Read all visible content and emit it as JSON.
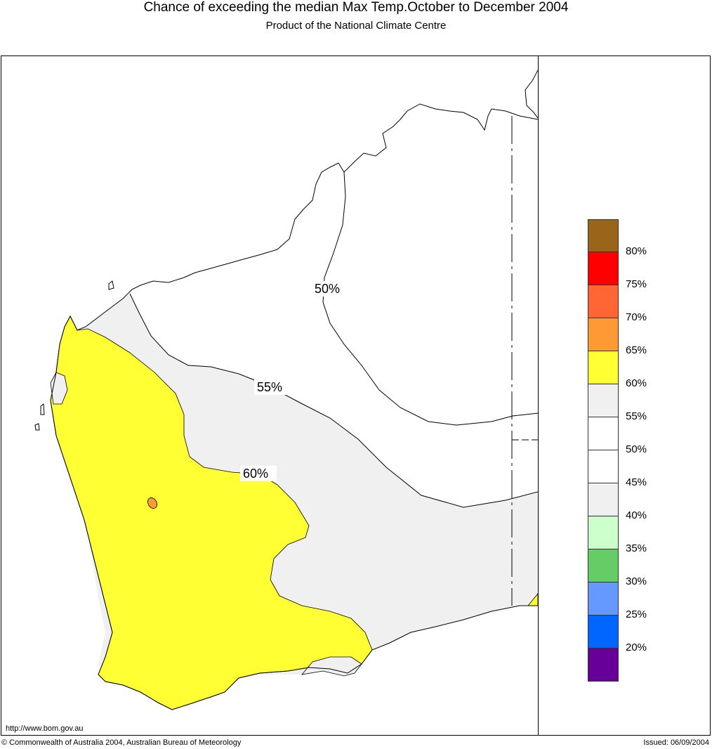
{
  "header": {
    "title": "Chance of exceeding the median Max Temp.October to December 2004",
    "subtitle": "Product of the National Climate Centre"
  },
  "map": {
    "region": "Western Australia",
    "contour_labels": [
      "50%",
      "55%",
      "60%"
    ],
    "colors": {
      "background": "#ffffff",
      "band_55_60": "#f0f0f0",
      "band_60_65": "#ffff33",
      "band_65_70": "#ff9933",
      "outline": "#000000"
    }
  },
  "legend": {
    "items": [
      {
        "label": "",
        "color": "#996619"
      },
      {
        "label": "80%",
        "color": "#ff0000"
      },
      {
        "label": "75%",
        "color": "#ff6633"
      },
      {
        "label": "70%",
        "color": "#ff9933"
      },
      {
        "label": "65%",
        "color": "#ffff33"
      },
      {
        "label": "60%",
        "color": "#f0f0f0"
      },
      {
        "label": "55%",
        "color": "#ffffff"
      },
      {
        "label": "50%",
        "color": "#ffffff"
      },
      {
        "label": "45%",
        "color": "#f0f0f0"
      },
      {
        "label": "40%",
        "color": "#ccffcc"
      },
      {
        "label": "35%",
        "color": "#66cc66"
      },
      {
        "label": "30%",
        "color": "#6699ff"
      },
      {
        "label": "25%",
        "color": "#0066ff"
      },
      {
        "label": "20%",
        "color": "#660099"
      }
    ]
  },
  "footer": {
    "url": "http://www.bom.gov.au",
    "copyright": "© Commonwealth of Australia 2004, Australian Bureau of Meteorology",
    "issued": "Issued: 06/09/2004"
  }
}
